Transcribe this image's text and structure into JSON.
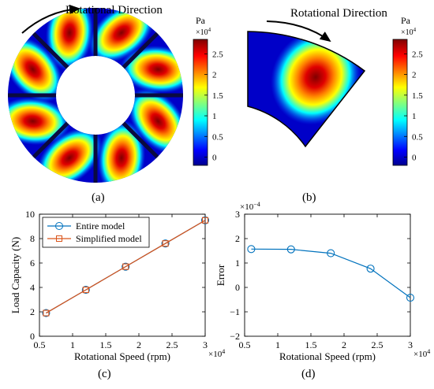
{
  "panel_a": {
    "annotation": "Rotational Direction",
    "colorbar": {
      "unit": "Pa",
      "exponent": "×10",
      "exponent_power": "4",
      "ticks": [
        "2.5",
        "2",
        "1.5",
        "1",
        "0.5",
        "0"
      ]
    },
    "caption": "(a)"
  },
  "panel_b": {
    "annotation": "Rotational Direction",
    "colorbar": {
      "unit": "Pa",
      "exponent": "×10",
      "exponent_power": "4",
      "ticks": [
        "2.5",
        "2",
        "1.5",
        "1",
        "0.5",
        "0"
      ]
    },
    "caption": "(b)"
  },
  "colors": {
    "dark_blue": "#00008f",
    "blue": "#0050ff",
    "cyan": "#00ffff",
    "yellow": "#ffff00",
    "orange": "#ff8000",
    "dark_red": "#800000",
    "entire_model": "#0072bd",
    "simplified_model": "#d95319"
  },
  "chart_data": [
    {
      "type": "line",
      "caption": "(c)",
      "xlabel": "Rotational Speed (rpm)",
      "ylabel": "Load Capacity (N)",
      "x_multiplier": {
        "base": "×10",
        "power": "4"
      },
      "x": [
        0.6,
        1.2,
        1.8,
        2.4,
        3.0
      ],
      "xlim": [
        0.5,
        3.0
      ],
      "ylim": [
        0,
        10
      ],
      "xticks": [
        "0.5",
        "1",
        "1.5",
        "2",
        "2.5",
        "3"
      ],
      "yticks": [
        "0",
        "2",
        "4",
        "6",
        "8",
        "10"
      ],
      "legend_position": "top-left",
      "grid": false,
      "series": [
        {
          "name": "Entire model",
          "marker": "circle",
          "values": [
            1.9,
            3.8,
            5.7,
            7.6,
            9.5
          ]
        },
        {
          "name": "Simplified model",
          "marker": "square",
          "values": [
            1.9,
            3.8,
            5.7,
            7.6,
            9.5
          ]
        }
      ]
    },
    {
      "type": "line",
      "caption": "(d)",
      "xlabel": "Rotational Speed (rpm)",
      "ylabel": "Error",
      "x_multiplier": {
        "base": "×10",
        "power": "4"
      },
      "y_multiplier": {
        "base": "×10",
        "power": "−4"
      },
      "x": [
        0.6,
        1.2,
        1.8,
        2.4,
        3.0
      ],
      "xlim": [
        0.5,
        3.0
      ],
      "ylim": [
        -2,
        3
      ],
      "xticks": [
        "0.5",
        "1",
        "1.5",
        "2",
        "2.5",
        "3"
      ],
      "yticks": [
        "−2",
        "−1",
        "0",
        "1",
        "2",
        "3"
      ],
      "grid": false,
      "series": [
        {
          "marker": "circle",
          "values": [
            1.57,
            1.56,
            1.4,
            0.77,
            -0.42
          ]
        }
      ]
    }
  ]
}
